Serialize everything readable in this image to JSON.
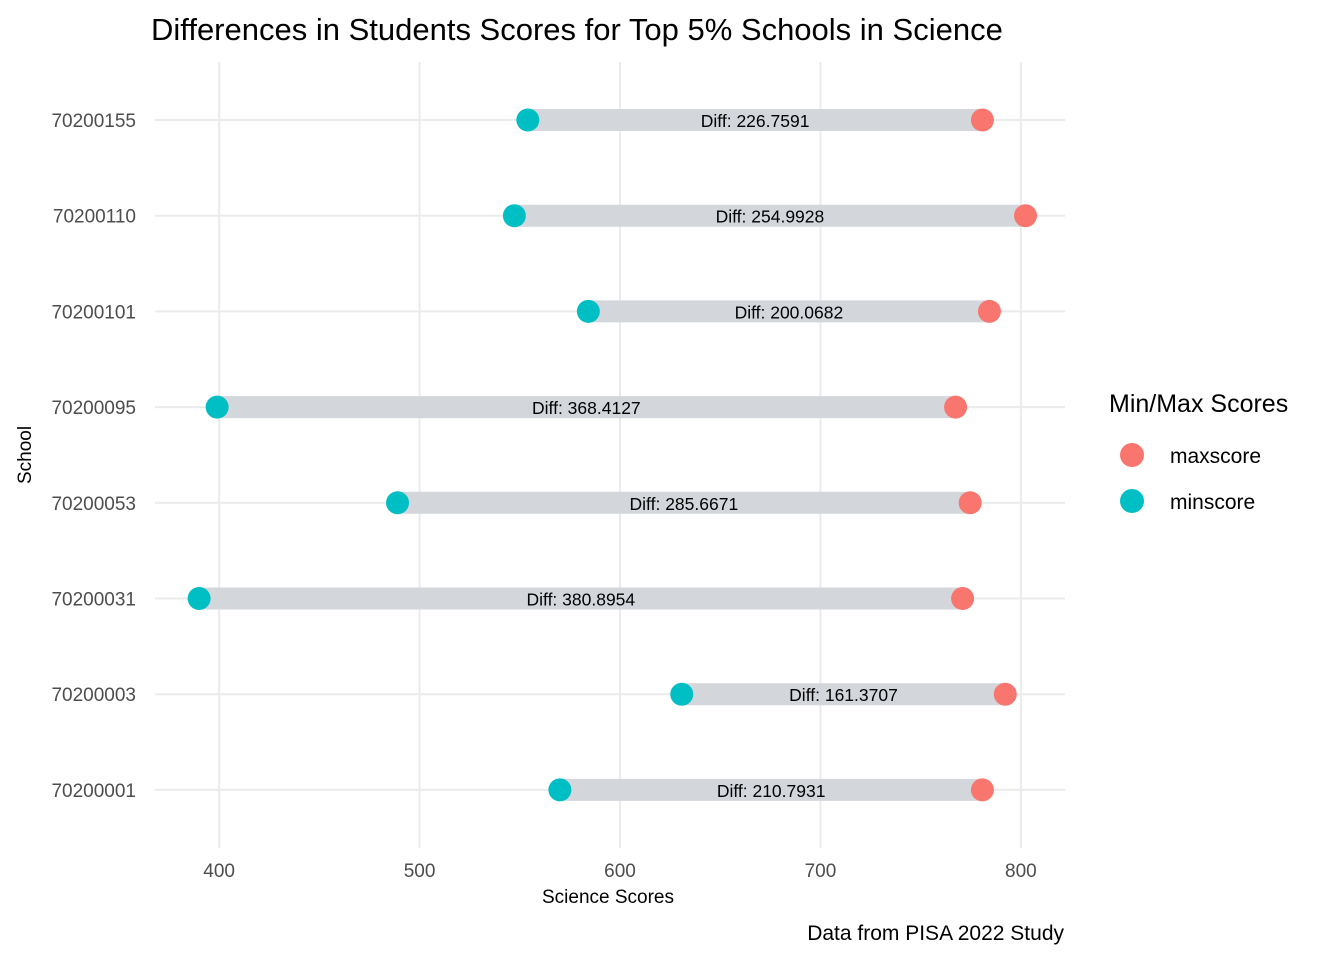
{
  "chart_data": {
    "type": "scatter",
    "subtype": "dumbbell",
    "title": "Differences in Students Scores for Top 5% Schools in Science",
    "xlabel": "Science Scores",
    "ylabel": "School",
    "caption": "Data from PISA 2022 Study",
    "xlim": [
      368,
      822
    ],
    "xticks": [
      400,
      500,
      600,
      700,
      800
    ],
    "grid": true,
    "legend": {
      "title": "Min/Max Scores",
      "position": "right",
      "entries": [
        {
          "name": "maxscore",
          "color": "#F8766D"
        },
        {
          "name": "minscore",
          "color": "#00BFC4"
        }
      ]
    },
    "label_prefix": "Diff: ",
    "schools": [
      {
        "school": "70200155",
        "minscore": 554.0,
        "maxscore": 780.8,
        "diff": "226.7591"
      },
      {
        "school": "70200110",
        "minscore": 547.3,
        "maxscore": 802.3,
        "diff": "254.9928"
      },
      {
        "school": "70200101",
        "minscore": 584.2,
        "maxscore": 784.3,
        "diff": "200.0682"
      },
      {
        "school": "70200095",
        "minscore": 399.0,
        "maxscore": 767.4,
        "diff": "368.4127"
      },
      {
        "school": "70200053",
        "minscore": 489.0,
        "maxscore": 774.7,
        "diff": "285.6671"
      },
      {
        "school": "70200031",
        "minscore": 390.0,
        "maxscore": 770.9,
        "diff": "380.8954"
      },
      {
        "school": "70200003",
        "minscore": 630.8,
        "maxscore": 792.2,
        "diff": "161.3707"
      },
      {
        "school": "70200001",
        "minscore": 570.0,
        "maxscore": 780.8,
        "diff": "210.7931"
      }
    ]
  }
}
